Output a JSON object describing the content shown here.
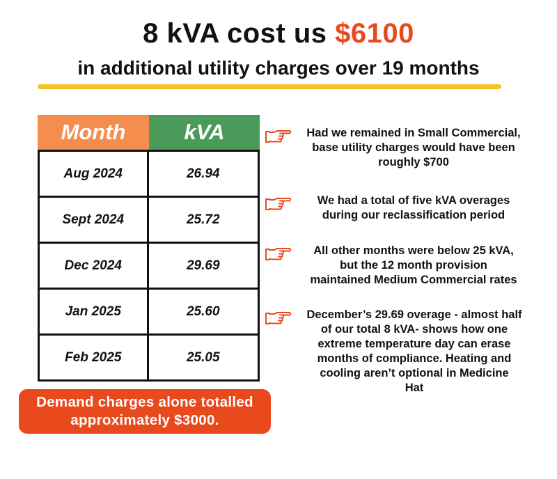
{
  "header": {
    "title_prefix": "8 kVA cost us ",
    "title_amount": "$6100",
    "subtitle": "in additional utility charges over 19 months"
  },
  "table": {
    "headers": {
      "month": "Month",
      "kva": "kVA"
    },
    "rows": [
      {
        "month": "Aug 2024",
        "kva": "26.94"
      },
      {
        "month": "Sept 2024",
        "kva": "25.72"
      },
      {
        "month": "Dec 2024",
        "kva": "29.69"
      },
      {
        "month": "Jan 2025",
        "kva": "25.60"
      },
      {
        "month": "Feb 2025",
        "kva": "25.05"
      }
    ]
  },
  "banner": {
    "line1": "Demand charges alone totalled",
    "line2": "approximately $3000."
  },
  "notes": [
    {
      "icon": "pointing-hand-icon",
      "lines": [
        "Had we remained in Small Commercial,",
        "base utility charges would have been",
        "roughly $700"
      ]
    },
    {
      "icon": "pointing-hand-icon",
      "lines": [
        "We had a total of five kVA overages",
        "during our reclassification period"
      ]
    },
    {
      "icon": "pointing-hand-icon",
      "lines": [
        "All other months were below 25 kVA,",
        "but the 12 month provision",
        "maintained Medium Commercial rates"
      ]
    },
    {
      "icon": "pointing-hand-icon",
      "lines": [
        "December’s 29.69 overage - almost half",
        "of our total 8 kVA- shows how one",
        "extreme temperature day can erase",
        "months of compliance. Heating and",
        "cooling aren’t optional in Medicine",
        "Hat"
      ]
    }
  ],
  "colors": {
    "accent": "#e8491d",
    "underline": "#f4c22a",
    "month_header": "#f58d4e",
    "kva_header": "#4a9a5a",
    "hand_outline": "#e8491d"
  }
}
